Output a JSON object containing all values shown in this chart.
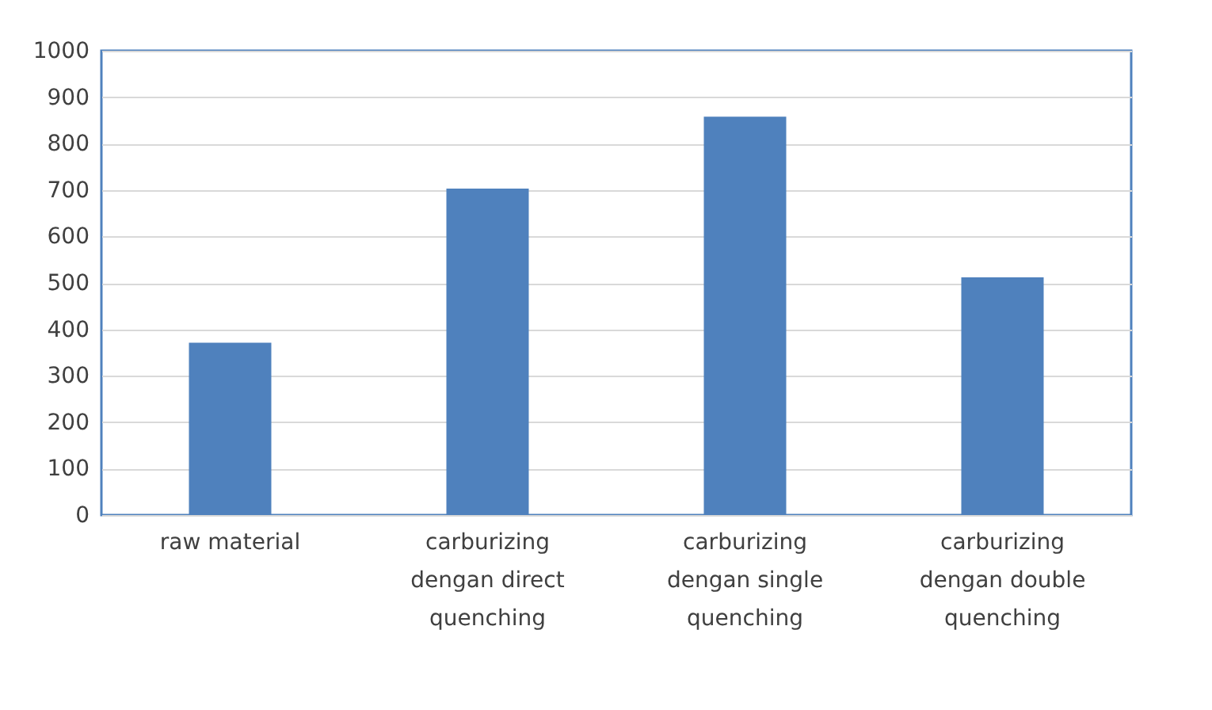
{
  "chart_data": {
    "type": "bar",
    "categories": [
      "raw material",
      "carburizing dengan direct quenching",
      "carburizing dengan single quenching",
      "carburizing dengan double quenching"
    ],
    "values": [
      371,
      703,
      858,
      512
    ],
    "color": "#4f81bd",
    "ylim": [
      0,
      1000
    ],
    "yticks": [
      0,
      100,
      200,
      300,
      400,
      500,
      600,
      700,
      800,
      900,
      1000
    ],
    "grid": "y"
  }
}
